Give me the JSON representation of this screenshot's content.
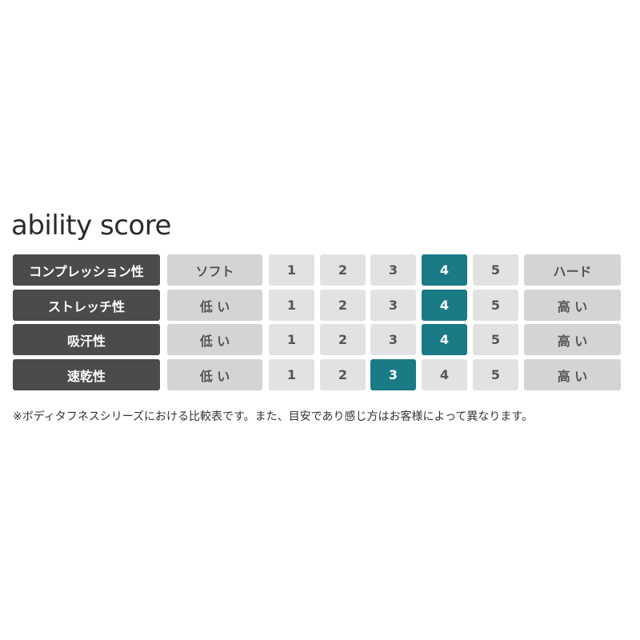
{
  "title": "ability score",
  "accent_color": "#1a7a86",
  "scale": [
    "1",
    "2",
    "3",
    "4",
    "5"
  ],
  "rows": [
    {
      "label": "コンプレッション性",
      "low": "ソフト",
      "high": "ハード",
      "value": 4
    },
    {
      "label": "ストレッチ性",
      "low": "低 い",
      "high": "高 い",
      "value": 4
    },
    {
      "label": "吸汗性",
      "low": "低 い",
      "high": "高 い",
      "value": 4
    },
    {
      "label": "速乾性",
      "low": "低 い",
      "high": "高 い",
      "value": 3
    }
  ],
  "footnote": "※ボディタフネスシリーズにおける比較表です。また、目安であり感じ方はお客様によって異なります。"
}
